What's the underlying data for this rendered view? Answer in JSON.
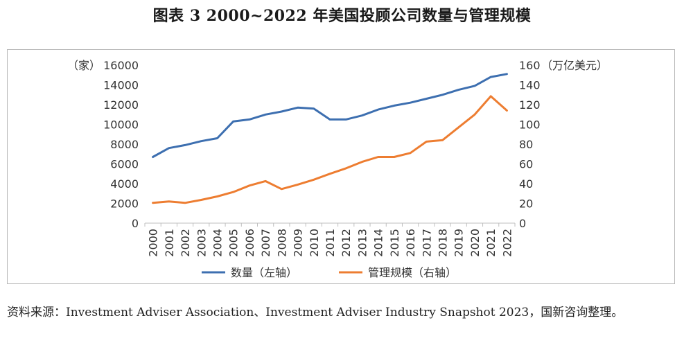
{
  "figure_title": "图表 3 2000~2022 年美国投顾公司数量与管理规模",
  "source_note": "资料来源：Investment Adviser Association、Investment Adviser Industry Snapshot 2023，国新咨询整理。",
  "colors": {
    "series1": "#3d6fb0",
    "series2": "#ed7d31"
  },
  "chart_data": {
    "type": "line",
    "categories": [
      "2000",
      "2001",
      "2002",
      "2003",
      "2004",
      "2005",
      "2006",
      "2007",
      "2008",
      "2009",
      "2010",
      "2011",
      "2012",
      "2013",
      "2014",
      "2015",
      "2016",
      "2017",
      "2018",
      "2019",
      "2020",
      "2021",
      "2022"
    ],
    "y_left": {
      "unit": "（家）",
      "ylim": [
        0,
        16000
      ],
      "ticks": [
        "0",
        "2000",
        "4000",
        "6000",
        "8000",
        "10000",
        "12000",
        "14000",
        "16000"
      ]
    },
    "y_right": {
      "unit": "（万亿美元）",
      "ylim": [
        0,
        160
      ],
      "ticks": [
        "0",
        "20",
        "40",
        "60",
        "80",
        "100",
        "120",
        "140",
        "160"
      ]
    },
    "series": [
      {
        "name": "数量（左轴）",
        "axis": "left",
        "values": [
          6700,
          7600,
          7900,
          8300,
          8600,
          10300,
          10500,
          11000,
          11300,
          11700,
          11600,
          10500,
          10500,
          10900,
          11500,
          11900,
          12200,
          12600,
          13000,
          13500,
          13900,
          14800,
          15100
        ]
      },
      {
        "name": "管理规模（右轴）",
        "axis": "right",
        "values": [
          20.5,
          22,
          20.5,
          23.5,
          27,
          31.5,
          38,
          42.5,
          34.5,
          39,
          44,
          50,
          55.5,
          62,
          67,
          67,
          71,
          82.5,
          84,
          97,
          110,
          128.5,
          114
        ]
      }
    ],
    "grid": false,
    "legend": "bottom"
  }
}
